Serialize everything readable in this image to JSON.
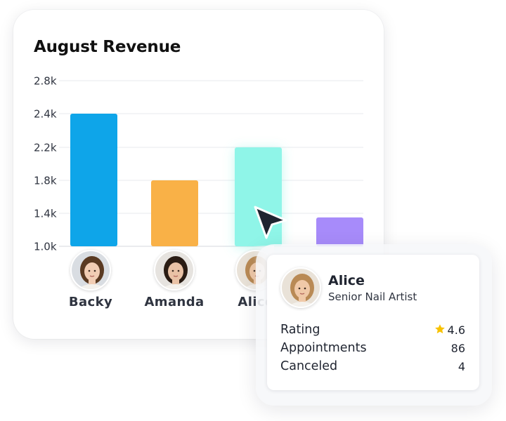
{
  "chart_data": {
    "type": "bar",
    "title": "August Revenue",
    "xlabel": "",
    "ylabel": "",
    "categories": [
      "Backy",
      "Amanda",
      "Alice",
      ""
    ],
    "values": [
      2.4,
      1.8,
      2.2,
      1.35
    ],
    "value_unit": "k",
    "yticks": [
      1.0,
      1.4,
      1.8,
      2.2,
      2.4,
      2.8
    ],
    "ytick_labels": [
      "1.0k",
      "1.4k",
      "1.8k",
      "2.2k",
      "2.4k",
      "2.8k"
    ],
    "ylim": [
      1.0,
      2.8
    ],
    "grid": true,
    "legend": "none",
    "bar_colors": [
      "#0ea5e9",
      "#f9b147",
      "#8ff5e8",
      "#a78bfa"
    ],
    "highlighted_bar": "Alice"
  },
  "stylists": [
    {
      "name": "Backy",
      "avatar_icon": "woman-curly-hair-avatar",
      "skin": "#f1cdb4",
      "hair": "#5a3a22",
      "bg": "#d9dde2"
    },
    {
      "name": "Amanda",
      "avatar_icon": "woman-dark-hair-avatar",
      "skin": "#e9c2a6",
      "hair": "#2a1c14",
      "bg": "#e6e3df"
    },
    {
      "name": "Alice",
      "avatar_icon": "woman-blonde-hair-avatar",
      "skin": "#f0c9a8",
      "hair": "#b98a55",
      "bg": "#e9e2d8"
    }
  ],
  "detail": {
    "name": "Alice",
    "role": "Senior Nail Artist",
    "avatar_icon": "woman-blonde-hair-avatar",
    "stats": [
      {
        "label": "Rating",
        "value": "4.6",
        "icon": "star-icon"
      },
      {
        "label": "Appointments",
        "value": "86"
      },
      {
        "label": "Canceled",
        "value": "4"
      }
    ]
  },
  "colors": {
    "star": "#f8c200",
    "grid": "#e7e9ee",
    "axis_text": "#2f3440"
  }
}
